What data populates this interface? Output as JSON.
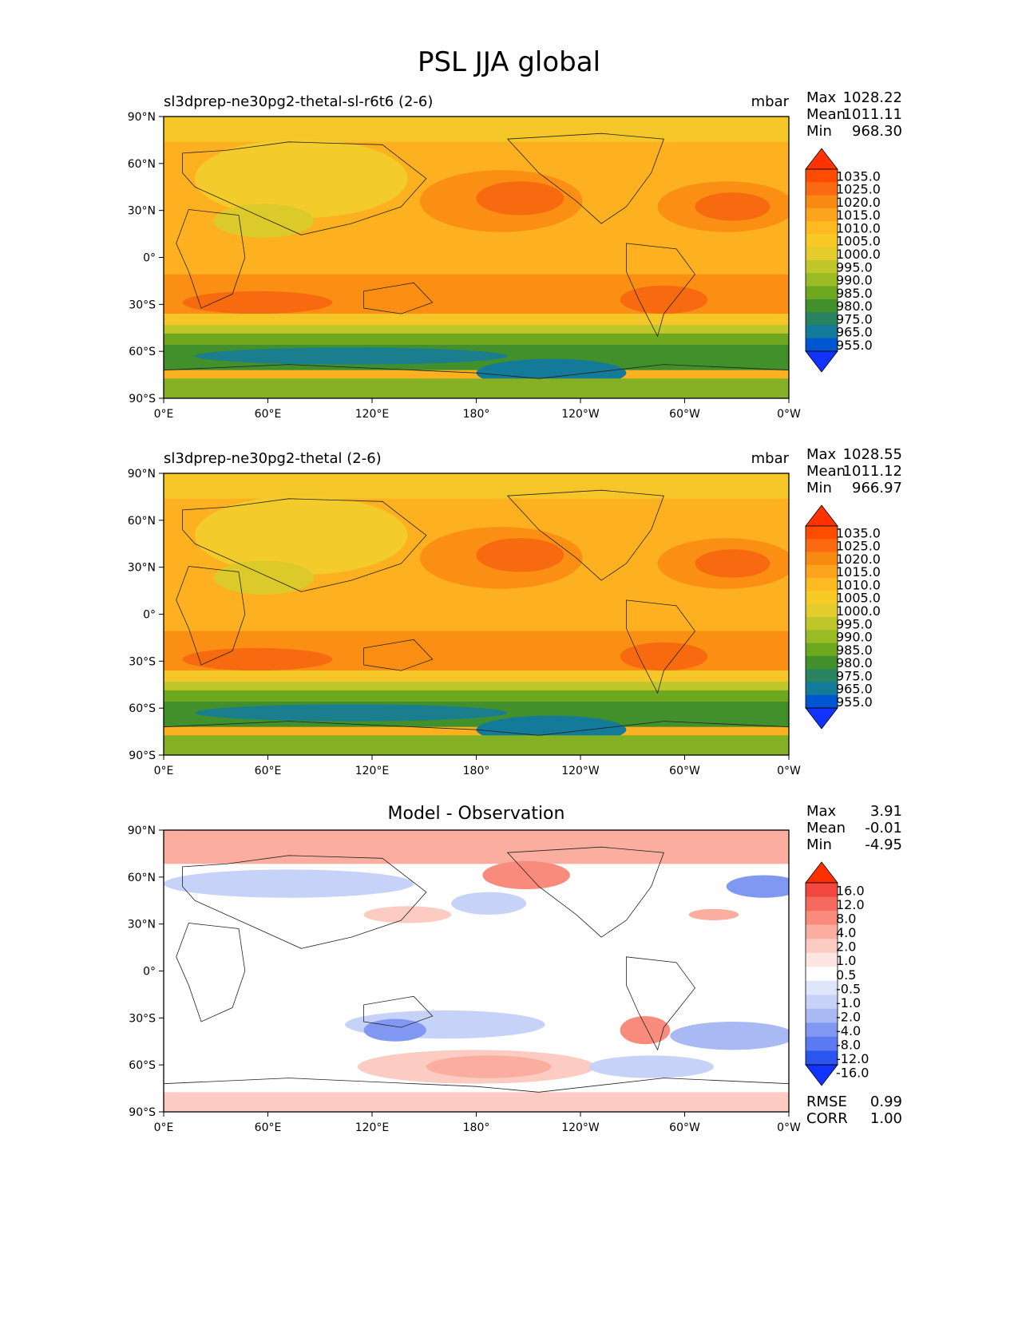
{
  "title": "PSL JJA global",
  "panels": [
    {
      "name": "test",
      "left_title": "sl3dprep-ne30pg2-thetal-sl-r6t6 (2-6)",
      "center_title": "",
      "units": "mbar",
      "stats": [
        {
          "label": "Max",
          "value": "1028.22"
        },
        {
          "label": "Mean",
          "value": "1011.11"
        },
        {
          "label": "Min",
          "value": "968.30"
        }
      ],
      "extra_stats": [],
      "colorbar": "abs"
    },
    {
      "name": "reference",
      "left_title": "sl3dprep-ne30pg2-thetal (2-6)",
      "center_title": "",
      "units": "mbar",
      "stats": [
        {
          "label": "Max",
          "value": "1028.55"
        },
        {
          "label": "Mean",
          "value": "1011.12"
        },
        {
          "label": "Min",
          "value": "966.97"
        }
      ],
      "extra_stats": [],
      "colorbar": "abs"
    },
    {
      "name": "difference",
      "left_title": "",
      "center_title": "Model - Observation",
      "units": "",
      "stats": [
        {
          "label": "Max",
          "value": "3.91"
        },
        {
          "label": "Mean",
          "value": "-0.01"
        },
        {
          "label": "Min",
          "value": "-4.95"
        }
      ],
      "extra_stats": [
        {
          "label": "RMSE",
          "value": "0.99"
        },
        {
          "label": "CORR",
          "value": "1.00"
        }
      ],
      "colorbar": "diff"
    }
  ],
  "axes": {
    "x_ticks": [
      "0°E",
      "60°E",
      "120°E",
      "180°",
      "120°W",
      "60°W",
      "0°W"
    ],
    "y_ticks": [
      "90°N",
      "60°N",
      "30°N",
      "0°",
      "30°S",
      "60°S",
      "90°S"
    ]
  },
  "colorbars": {
    "abs": {
      "labels": [
        "1035.0",
        "1025.0",
        "1020.0",
        "1015.0",
        "1010.0",
        "1005.0",
        "1000.0",
        "995.0",
        "990.0",
        "985.0",
        "980.0",
        "975.0",
        "965.0",
        "955.0"
      ],
      "colors": [
        "#ff3300",
        "#ff4c00",
        "#fb6a11",
        "#f88a12",
        "#fda41e",
        "#fdbb21",
        "#f7ca25",
        "#e3cc2b",
        "#c0c72a",
        "#9bbb25",
        "#6ea81f",
        "#41902c",
        "#2a8360",
        "#147a9a",
        "#0056d0",
        "#1133ff"
      ]
    },
    "diff": {
      "labels": [
        "16.0",
        "12.0",
        "8.0",
        "4.0",
        "2.0",
        "1.0",
        "0.5",
        "-0.5",
        "-1.0",
        "-2.0",
        "-4.0",
        "-8.0",
        "-12.0",
        "-16.0"
      ],
      "colors": [
        "#ff3000",
        "#f2473f",
        "#f5695f",
        "#f98b7d",
        "#fbada0",
        "#fccbc2",
        "#fde5e1",
        "#ffffff",
        "#dfe6fb",
        "#c7d2f8",
        "#a9b9f4",
        "#8098f2",
        "#5b79f1",
        "#2c55f0",
        "#1133ff"
      ]
    }
  }
}
